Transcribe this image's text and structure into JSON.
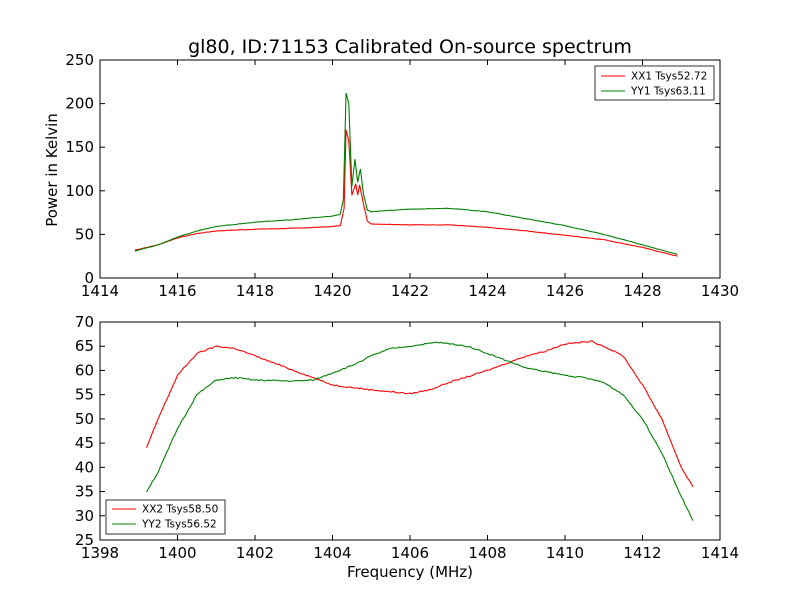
{
  "chart_data": [
    {
      "type": "line",
      "title": "gl80, ID:71153 Calibrated On-source spectrum",
      "xlabel": "",
      "ylabel": "Power in Kelvin",
      "xlim": [
        1414,
        1430
      ],
      "ylim": [
        0,
        250
      ],
      "xticks": [
        "1414",
        "1416",
        "1418",
        "1420",
        "1422",
        "1424",
        "1426",
        "1428",
        "1430"
      ],
      "yticks": [
        "0",
        "50",
        "100",
        "150",
        "200",
        "250"
      ],
      "legend_position": "top-right",
      "series": [
        {
          "name": "XX1 Tsys52.72",
          "color": "#ff0000",
          "points": [
            [
              1414.9,
              32
            ],
            [
              1415.5,
              38
            ],
            [
              1416,
              46
            ],
            [
              1416.5,
              51
            ],
            [
              1417,
              54
            ],
            [
              1418,
              56
            ],
            [
              1419,
              57
            ],
            [
              1420,
              59
            ],
            [
              1420.2,
              60
            ],
            [
              1420.3,
              80
            ],
            [
              1420.35,
              170
            ],
            [
              1420.42,
              158
            ],
            [
              1420.5,
              95
            ],
            [
              1420.6,
              108
            ],
            [
              1420.65,
              95
            ],
            [
              1420.7,
              107
            ],
            [
              1420.8,
              85
            ],
            [
              1420.9,
              65
            ],
            [
              1421,
              62
            ],
            [
              1422,
              61
            ],
            [
              1423,
              61
            ],
            [
              1424,
              58
            ],
            [
              1425,
              54
            ],
            [
              1426,
              49
            ],
            [
              1427,
              44
            ],
            [
              1428,
              35
            ],
            [
              1428.9,
              25
            ]
          ]
        },
        {
          "name": "YY1 Tsys63.11",
          "color": "#008000",
          "points": [
            [
              1414.9,
              31
            ],
            [
              1415.5,
              38
            ],
            [
              1416,
              47
            ],
            [
              1416.5,
              54
            ],
            [
              1417,
              59
            ],
            [
              1418,
              64
            ],
            [
              1419,
              67
            ],
            [
              1420,
              71
            ],
            [
              1420.2,
              73
            ],
            [
              1420.28,
              90
            ],
            [
              1420.35,
              212
            ],
            [
              1420.42,
              200
            ],
            [
              1420.5,
              105
            ],
            [
              1420.58,
              136
            ],
            [
              1420.65,
              110
            ],
            [
              1420.72,
              125
            ],
            [
              1420.8,
              96
            ],
            [
              1420.9,
              78
            ],
            [
              1421,
              76
            ],
            [
              1422,
              79
            ],
            [
              1423,
              80
            ],
            [
              1424,
              76
            ],
            [
              1425,
              68
            ],
            [
              1426,
              60
            ],
            [
              1427,
              50
            ],
            [
              1428,
              38
            ],
            [
              1428.9,
              27
            ]
          ]
        }
      ]
    },
    {
      "type": "line",
      "title": "",
      "xlabel": "Frequency (MHz)",
      "ylabel": "",
      "xlim": [
        1398,
        1414
      ],
      "ylim": [
        25,
        70
      ],
      "xticks": [
        "1398",
        "1400",
        "1402",
        "1404",
        "1406",
        "1408",
        "1410",
        "1412",
        "1414"
      ],
      "yticks": [
        "25",
        "30",
        "35",
        "40",
        "45",
        "50",
        "55",
        "60",
        "65",
        "70"
      ],
      "legend_position": "bottom-left",
      "series": [
        {
          "name": "XX2 Tsys58.50",
          "color": "#ff0000",
          "points": [
            [
              1399.2,
              44
            ],
            [
              1399.5,
              50
            ],
            [
              1400,
              59
            ],
            [
              1400.5,
              63.5
            ],
            [
              1401,
              65
            ],
            [
              1401.5,
              64.5
            ],
            [
              1402,
              63
            ],
            [
              1403,
              60
            ],
            [
              1404,
              57
            ],
            [
              1405,
              56
            ],
            [
              1406,
              55.2
            ],
            [
              1406.5,
              56
            ],
            [
              1407,
              57.5
            ],
            [
              1408,
              60
            ],
            [
              1408.5,
              61.5
            ],
            [
              1409,
              63
            ],
            [
              1409.5,
              64
            ],
            [
              1410,
              65.5
            ],
            [
              1410.7,
              66
            ],
            [
              1411,
              65
            ],
            [
              1411.5,
              63
            ],
            [
              1412,
              57
            ],
            [
              1412.5,
              50
            ],
            [
              1413,
              40
            ],
            [
              1413.3,
              36
            ]
          ]
        },
        {
          "name": "YY2 Tsys56.52",
          "color": "#008000",
          "points": [
            [
              1399.2,
              35
            ],
            [
              1399.5,
              39
            ],
            [
              1400,
              48
            ],
            [
              1400.5,
              55
            ],
            [
              1401,
              58
            ],
            [
              1401.5,
              58.5
            ],
            [
              1402,
              58
            ],
            [
              1403,
              57.8
            ],
            [
              1403.5,
              58
            ],
            [
              1404,
              59.5
            ],
            [
              1404.5,
              61
            ],
            [
              1405,
              63
            ],
            [
              1405.5,
              64.5
            ],
            [
              1406,
              65
            ],
            [
              1406.7,
              65.8
            ],
            [
              1407.5,
              65
            ],
            [
              1408,
              63.5
            ],
            [
              1408.5,
              62
            ],
            [
              1409,
              60.5
            ],
            [
              1410,
              59
            ],
            [
              1410.5,
              58.5
            ],
            [
              1411,
              57.5
            ],
            [
              1411.5,
              55
            ],
            [
              1412,
              50
            ],
            [
              1412.5,
              43
            ],
            [
              1413,
              34
            ],
            [
              1413.3,
              29
            ]
          ]
        }
      ]
    }
  ]
}
